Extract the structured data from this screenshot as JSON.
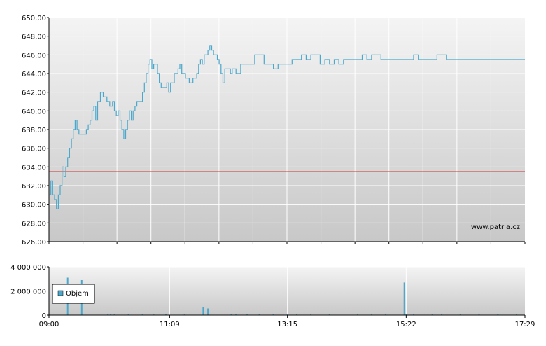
{
  "colors": {
    "price_line": "#4aa8cc",
    "reference_line": "#cc3333",
    "grid": "#ffffff",
    "plot_bg_top": "#f4f4f4",
    "plot_bg_bottom": "#c8c8c8",
    "volume_bar": "#4aa8cc",
    "axis": "#000000"
  },
  "watermark": "www.patria.cz",
  "legend": {
    "label": "Objem"
  },
  "chart_data": [
    {
      "type": "line",
      "name": "price",
      "ylim": [
        626,
        650
      ],
      "yticks": [
        "650,00",
        "648,00",
        "646,00",
        "644,00",
        "642,00",
        "640,00",
        "638,00",
        "636,00",
        "634,00",
        "632,00",
        "630,00",
        "628,00",
        "626,00"
      ],
      "ytick_values": [
        650,
        648,
        646,
        644,
        642,
        640,
        638,
        636,
        634,
        632,
        630,
        628,
        626
      ],
      "reference_value": 633.5,
      "grid": true,
      "x_minutes_range": [
        0,
        509
      ],
      "series": [
        {
          "x": [
            0,
            2,
            4,
            6,
            8,
            10,
            12,
            14,
            16,
            18,
            20,
            22,
            24,
            26,
            28,
            30,
            32,
            34,
            36,
            38,
            40,
            42,
            44,
            46,
            48,
            50,
            52,
            55,
            58,
            62,
            65,
            68,
            70,
            72,
            74,
            76,
            78,
            80,
            82,
            84,
            86,
            88,
            90,
            92,
            94,
            96,
            98,
            100,
            102,
            104,
            106,
            108,
            110,
            112,
            114,
            116,
            118,
            120,
            122,
            124,
            126,
            128,
            130,
            132,
            134,
            136,
            138,
            140,
            142,
            144,
            146,
            148,
            150,
            152,
            154,
            156,
            158,
            160,
            162,
            164,
            166,
            168,
            170,
            172,
            174,
            176,
            178,
            180,
            182,
            184,
            186,
            188,
            190,
            192,
            194,
            196,
            198,
            200,
            205,
            210,
            215,
            220,
            225,
            230,
            235,
            240,
            245,
            250,
            255,
            260,
            265,
            270,
            275,
            280,
            285,
            290,
            295,
            300,
            305,
            310,
            315,
            320,
            325,
            330,
            335,
            340,
            345,
            350,
            355,
            360,
            365,
            370,
            375,
            380,
            385,
            390,
            395,
            400,
            405,
            410,
            415,
            420,
            425,
            430,
            435,
            440,
            445,
            450,
            455,
            460,
            465,
            470,
            475,
            480,
            485,
            490,
            495,
            500,
            505,
            509
          ],
          "values": [
            631,
            632.5,
            631,
            630.5,
            629.5,
            631,
            632,
            634,
            633,
            634,
            635,
            636,
            637,
            638,
            639,
            638,
            637.5,
            637.5,
            637.5,
            637.5,
            638,
            638.5,
            639,
            640,
            640.5,
            639,
            641,
            642,
            641.5,
            641,
            640.5,
            641,
            640,
            639.5,
            640,
            639,
            638,
            637,
            638,
            639,
            640,
            639,
            640,
            640.5,
            641,
            641,
            641,
            642,
            643,
            644,
            645,
            645.5,
            644.5,
            645,
            645,
            644,
            643,
            642.5,
            642.5,
            642.5,
            643,
            642,
            643,
            643,
            644,
            644,
            644.5,
            645,
            644,
            644,
            643.5,
            643.5,
            643,
            643,
            643.5,
            643.5,
            644,
            645,
            645.5,
            645,
            646,
            646,
            646.5,
            647,
            646.5,
            646,
            646,
            645.5,
            645,
            644,
            643,
            644.5,
            644.5,
            644.5,
            644,
            644.5,
            644.5,
            644,
            645,
            645,
            645,
            646,
            646,
            645,
            645,
            644.5,
            645,
            645,
            645,
            645.5,
            645.5,
            646,
            645.5,
            646,
            646,
            645,
            645.5,
            645,
            645.5,
            645,
            645.5,
            645.5,
            645.5,
            645.5,
            646,
            645.5,
            646,
            646,
            645.5,
            645.5,
            645.5,
            645.5,
            645.5,
            645.5,
            645.5,
            646,
            645.5,
            645.5,
            645.5,
            645.5,
            646,
            646,
            645.5,
            645.5,
            645.5,
            645.5,
            645.5,
            645.5,
            645.5,
            645.5,
            645.5,
            645.5,
            645.5,
            645.5,
            645.5,
            645.5,
            645.5,
            645.5,
            645.5,
            645.5
          ]
        }
      ]
    },
    {
      "type": "bar",
      "name": "volume",
      "ylim": [
        0,
        4000000
      ],
      "yticks": [
        "4 000 000",
        "2 000 000",
        "0"
      ],
      "ytick_values": [
        4000000,
        2000000,
        0
      ],
      "xticks": [
        "09:00",
        "11:09",
        "13:15",
        "15:22",
        "17:29"
      ],
      "xtick_minutes": [
        0,
        129,
        255,
        382,
        509
      ],
      "grid": true,
      "legend_position": "left",
      "series": [
        {
          "name": "Objem",
          "x": [
            20,
            35,
            63,
            66,
            70,
            85,
            100,
            112,
            125,
            145,
            165,
            170,
            195,
            200,
            212,
            225,
            240,
            255,
            265,
            280,
            300,
            330,
            345,
            360,
            380,
            382,
            390,
            410,
            420,
            440,
            460,
            480,
            500
          ],
          "values": [
            3100000,
            2900000,
            90000,
            80000,
            100000,
            60000,
            70000,
            50000,
            80000,
            70000,
            650000,
            550000,
            60000,
            70000,
            90000,
            60000,
            70000,
            50000,
            60000,
            50000,
            80000,
            60000,
            70000,
            60000,
            2700000,
            90000,
            80000,
            70000,
            60000,
            70000,
            60000,
            80000,
            70000
          ]
        }
      ]
    }
  ]
}
